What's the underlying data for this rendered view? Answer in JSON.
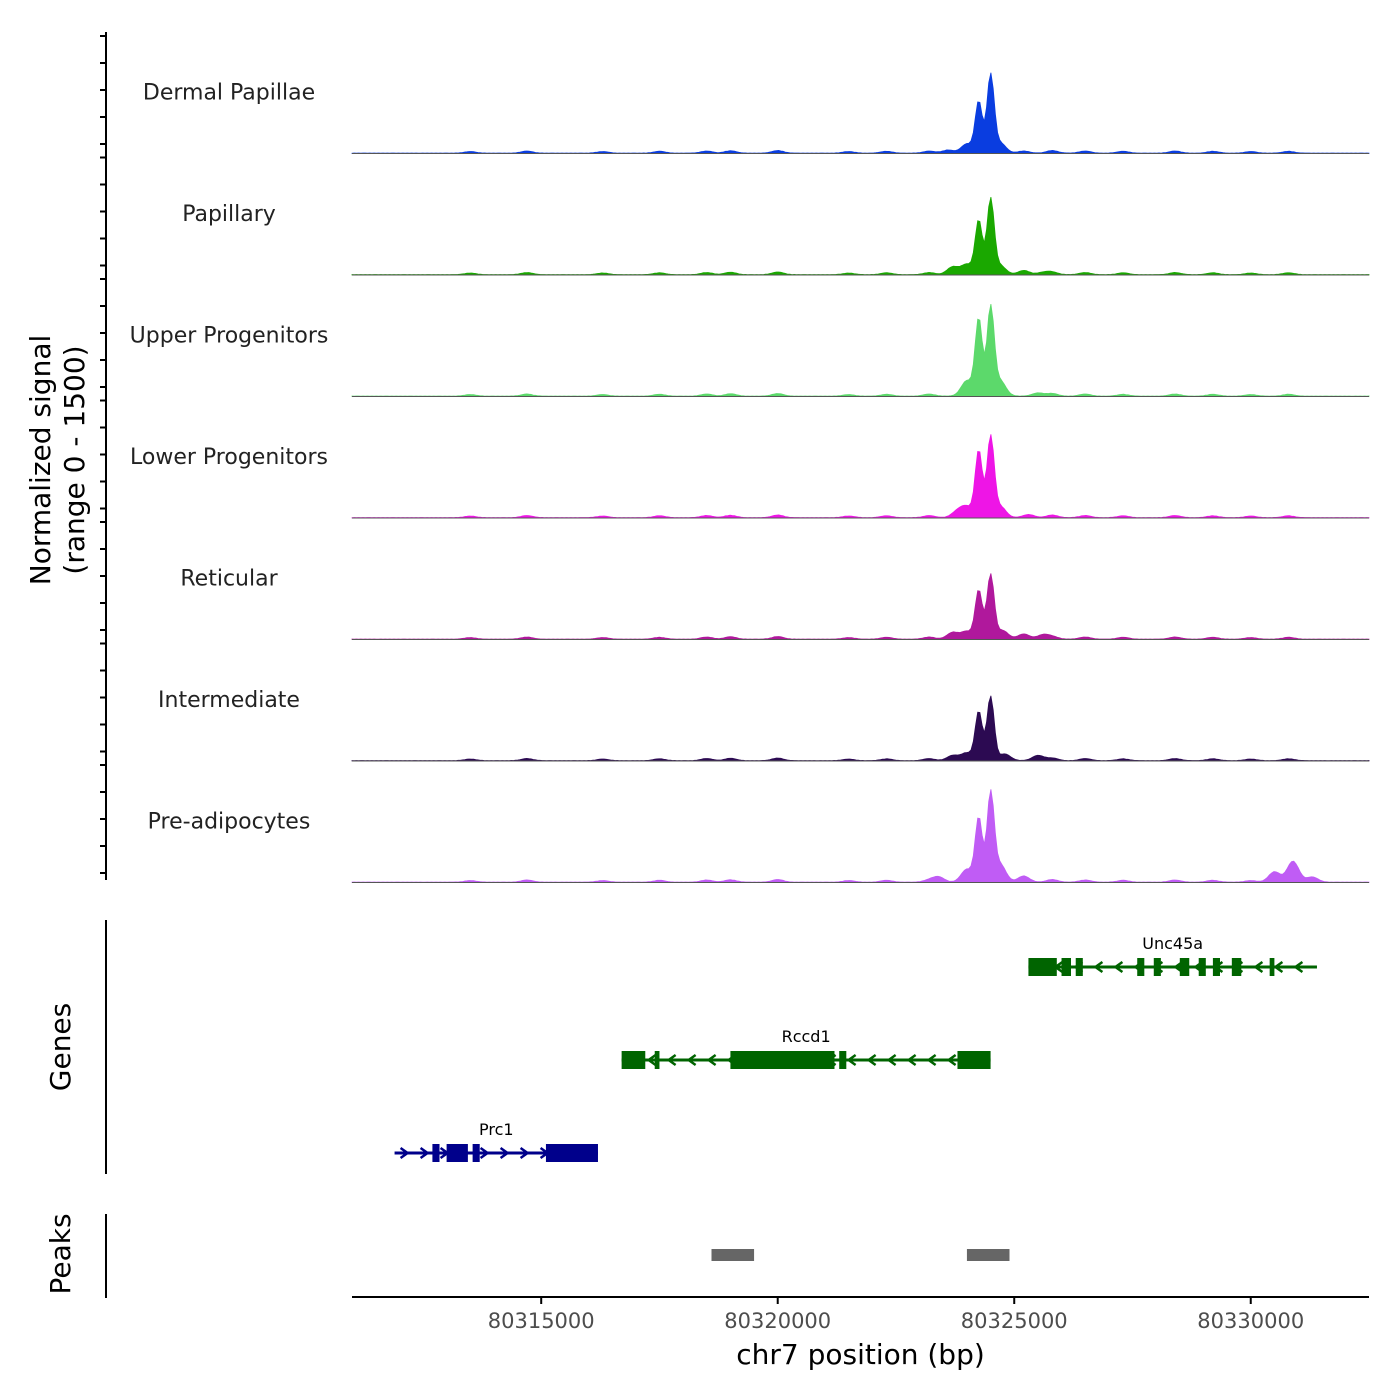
{
  "chart_data": {
    "type": "area",
    "title": "",
    "xlabel": "chr7 position (bp)",
    "ylabel": [
      "Normalized signal",
      "(range 0 - 1500)"
    ],
    "x_range": [
      80311000,
      80332500
    ],
    "y_range": [
      0,
      1500
    ],
    "x_ticks": [
      {
        "value": 80315000,
        "label": "80315000"
      },
      {
        "value": 80320000,
        "label": "80320000"
      },
      {
        "value": 80325000,
        "label": "80325000"
      },
      {
        "value": 80330000,
        "label": "80330000"
      }
    ],
    "baseline_peaks": [
      [
        80313500,
        30
      ],
      [
        80314700,
        40
      ],
      [
        80316300,
        30
      ],
      [
        80317500,
        35
      ],
      [
        80318500,
        40
      ],
      [
        80319000,
        45
      ],
      [
        80320000,
        50
      ],
      [
        80321500,
        30
      ],
      [
        80322300,
        35
      ],
      [
        80323200,
        40
      ],
      [
        80325800,
        50
      ],
      [
        80326500,
        40
      ],
      [
        80327300,
        35
      ],
      [
        80328400,
        40
      ],
      [
        80329200,
        35
      ],
      [
        80330000,
        30
      ],
      [
        80330800,
        35
      ]
    ],
    "series": [
      {
        "name": "Dermal Papillae",
        "color": "#0a3de0",
        "peaks": [
          [
            80323600,
            60
          ],
          [
            80324000,
            180
          ],
          [
            80324250,
            1000
          ],
          [
            80324500,
            1500
          ],
          [
            80324700,
            200
          ],
          [
            80325200,
            40
          ]
        ]
      },
      {
        "name": "Papillary",
        "color": "#1aa800",
        "peaks": [
          [
            80323700,
            150
          ],
          [
            80324000,
            200
          ],
          [
            80324250,
            1050
          ],
          [
            80324500,
            1450
          ],
          [
            80324700,
            180
          ],
          [
            80325200,
            80
          ],
          [
            80325600,
            40
          ]
        ]
      },
      {
        "name": "Upper Progenitors",
        "color": "#5cd96b",
        "peaks": [
          [
            80324000,
            300
          ],
          [
            80324250,
            1500
          ],
          [
            80324500,
            1700
          ],
          [
            80324700,
            300
          ],
          [
            80325500,
            60
          ]
        ]
      },
      {
        "name": "Lower Progenitors",
        "color": "#ee15e6",
        "peaks": [
          [
            80323800,
            120
          ],
          [
            80324000,
            200
          ],
          [
            80324250,
            1300
          ],
          [
            80324500,
            1550
          ],
          [
            80324700,
            220
          ],
          [
            80325300,
            60
          ]
        ]
      },
      {
        "name": "Reticular",
        "color": "#b0189c",
        "peaks": [
          [
            80323700,
            130
          ],
          [
            80324000,
            150
          ],
          [
            80324250,
            950
          ],
          [
            80324500,
            1250
          ],
          [
            80324750,
            170
          ],
          [
            80325200,
            100
          ],
          [
            80325600,
            80
          ]
        ]
      },
      {
        "name": "Intermediate",
        "color": "#2c0a52",
        "peaks": [
          [
            80323700,
            100
          ],
          [
            80324000,
            150
          ],
          [
            80324250,
            950
          ],
          [
            80324500,
            1250
          ],
          [
            80324800,
            130
          ],
          [
            80325500,
            100
          ]
        ]
      },
      {
        "name": "Pre-adipocytes",
        "color": "#c05cf5",
        "peaks": [
          [
            80323400,
            100
          ],
          [
            80324000,
            250
          ],
          [
            80324250,
            1250
          ],
          [
            80324500,
            1700
          ],
          [
            80324700,
            350
          ],
          [
            80325200,
            120
          ],
          [
            80330500,
            200
          ],
          [
            80330900,
            380
          ],
          [
            80331300,
            100
          ]
        ]
      }
    ],
    "genes": [
      {
        "name": "Unc45a",
        "color": "#006400",
        "strand": "-",
        "start": 80325300,
        "end": 80331400,
        "row": 1,
        "exons": [
          [
            80325300,
            80325900
          ],
          [
            80326000,
            80326200
          ],
          [
            80326300,
            80326450
          ],
          [
            80327600,
            80327750
          ],
          [
            80327950,
            80328100
          ],
          [
            80328500,
            80328700
          ],
          [
            80328900,
            80329050
          ],
          [
            80329200,
            80329350
          ],
          [
            80329600,
            80329800
          ],
          [
            80330400,
            80330500
          ]
        ]
      },
      {
        "name": "Rccd1",
        "color": "#006400",
        "strand": "-",
        "start": 80316700,
        "end": 80324500,
        "row": 2,
        "exons": [
          [
            80316700,
            80317200
          ],
          [
            80317400,
            80317500
          ],
          [
            80319000,
            80321200
          ],
          [
            80321300,
            80321450
          ],
          [
            80323800,
            80324500
          ]
        ]
      },
      {
        "name": "Prc1",
        "color": "#00008b",
        "strand": "+",
        "start": 80311900,
        "end": 80316200,
        "row": 3,
        "exons": [
          [
            80312700,
            80312850
          ],
          [
            80313000,
            80313450
          ],
          [
            80313550,
            80313700
          ],
          [
            80315100,
            80316200
          ]
        ]
      }
    ],
    "peaks_track": [
      [
        80318600,
        80319500
      ],
      [
        80324000,
        80324900
      ]
    ],
    "track_titles": [
      "Genes",
      "Peaks"
    ]
  }
}
